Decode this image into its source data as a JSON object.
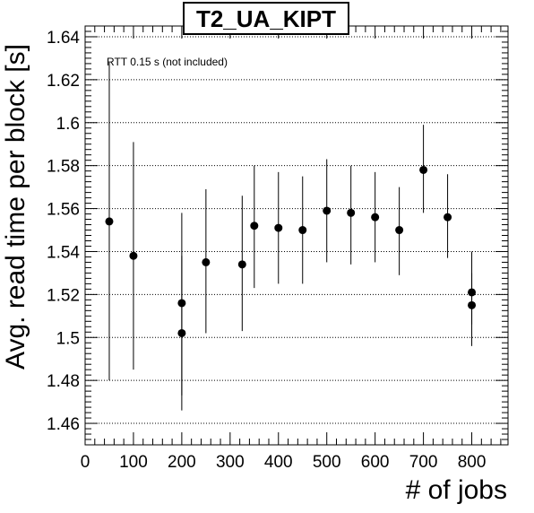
{
  "chart_data": {
    "type": "scatter",
    "title": "T2_UA_KIPT",
    "xlabel": "# of jobs",
    "ylabel": "Avg. read time per block [s]",
    "annotation": "RTT 0.15 s (not included)",
    "xlim": [
      0,
      875
    ],
    "ylim": [
      1.45,
      1.645
    ],
    "x_ticks": [
      0,
      100,
      200,
      300,
      400,
      500,
      600,
      700,
      800
    ],
    "x_tick_labels": [
      "0",
      "100",
      "200",
      "300",
      "400",
      "500",
      "600",
      "700",
      "800"
    ],
    "y_ticks": [
      1.46,
      1.48,
      1.5,
      1.52,
      1.54,
      1.56,
      1.58,
      1.6,
      1.62,
      1.64
    ],
    "y_tick_labels": [
      "1.46",
      "1.48",
      "1.5",
      "1.52",
      "1.54",
      "1.56",
      "1.58",
      "1.6",
      "1.62",
      "1.64"
    ],
    "grid": {
      "horizontal": true,
      "vertical": false
    },
    "points": [
      {
        "x": 50,
        "y": 1.554,
        "ylow": 1.48,
        "yhigh": 1.628
      },
      {
        "x": 100,
        "y": 1.538,
        "ylow": 1.485,
        "yhigh": 1.591
      },
      {
        "x": 200,
        "y": 1.516,
        "ylow": 1.473,
        "yhigh": 1.558
      },
      {
        "x": 200,
        "y": 1.502,
        "ylow": 1.466,
        "yhigh": 1.538
      },
      {
        "x": 250,
        "y": 1.535,
        "ylow": 1.502,
        "yhigh": 1.569
      },
      {
        "x": 325,
        "y": 1.534,
        "ylow": 1.503,
        "yhigh": 1.566
      },
      {
        "x": 350,
        "y": 1.552,
        "ylow": 1.523,
        "yhigh": 1.58
      },
      {
        "x": 400,
        "y": 1.551,
        "ylow": 1.525,
        "yhigh": 1.577
      },
      {
        "x": 450,
        "y": 1.55,
        "ylow": 1.525,
        "yhigh": 1.575
      },
      {
        "x": 500,
        "y": 1.559,
        "ylow": 1.535,
        "yhigh": 1.583
      },
      {
        "x": 550,
        "y": 1.558,
        "ylow": 1.534,
        "yhigh": 1.58
      },
      {
        "x": 600,
        "y": 1.556,
        "ylow": 1.535,
        "yhigh": 1.577
      },
      {
        "x": 650,
        "y": 1.55,
        "ylow": 1.529,
        "yhigh": 1.57
      },
      {
        "x": 700,
        "y": 1.578,
        "ylow": 1.558,
        "yhigh": 1.599
      },
      {
        "x": 750,
        "y": 1.556,
        "ylow": 1.537,
        "yhigh": 1.576
      },
      {
        "x": 800,
        "y": 1.521,
        "ylow": 1.506,
        "yhigh": 1.54
      },
      {
        "x": 800,
        "y": 1.515,
        "ylow": 1.496,
        "yhigh": 1.53
      }
    ]
  }
}
